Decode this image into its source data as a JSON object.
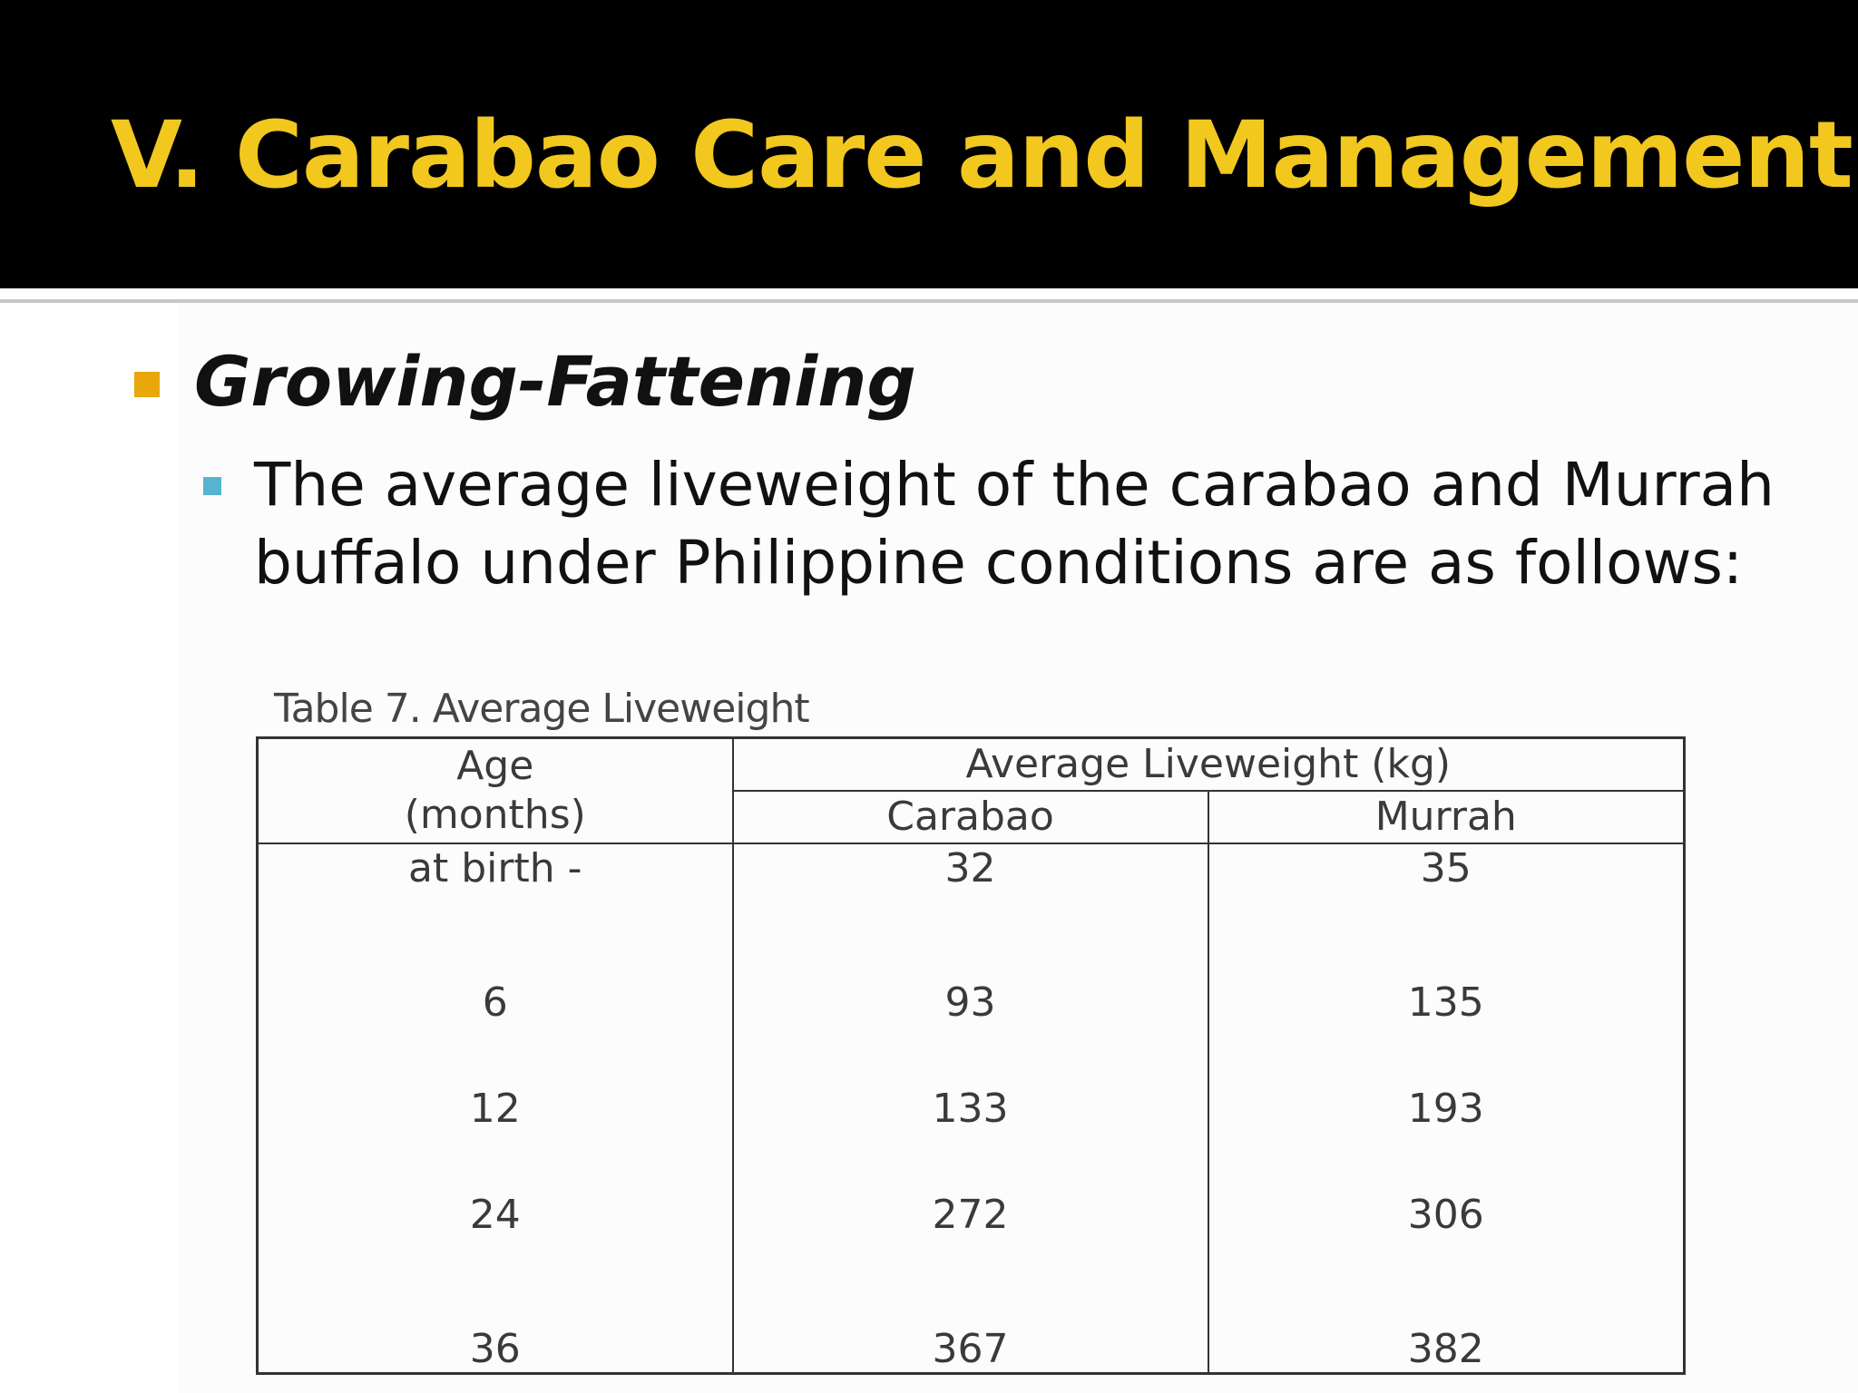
{
  "title": "V. Carabao Care and Management",
  "heading": "Growing-Fattening",
  "body": "The average liveweight of the carabao and Murrah buffalo under Philippine conditions are as follows:",
  "colors": {
    "title_bar": "#000000",
    "title_text": "#f2c81e",
    "bullet_primary": "#e8a80a",
    "bullet_secondary": "#57b4cf"
  },
  "table": {
    "caption": "Table 7. Average Liveweight",
    "headers": {
      "age_line1": "Age",
      "age_line2": "(months)",
      "group": "Average Liveweight (kg)",
      "col_carabao": "Carabao",
      "col_murrah": "Murrah"
    },
    "rows": [
      {
        "age": "at birth -",
        "carabao": "32",
        "murrah": "35"
      },
      {
        "age": "6",
        "carabao": "93",
        "murrah": "135"
      },
      {
        "age": "12",
        "carabao": "133",
        "murrah": "193"
      },
      {
        "age": "24",
        "carabao": "272",
        "murrah": "306"
      },
      {
        "age": "36",
        "carabao": "367",
        "murrah": "382"
      }
    ]
  }
}
